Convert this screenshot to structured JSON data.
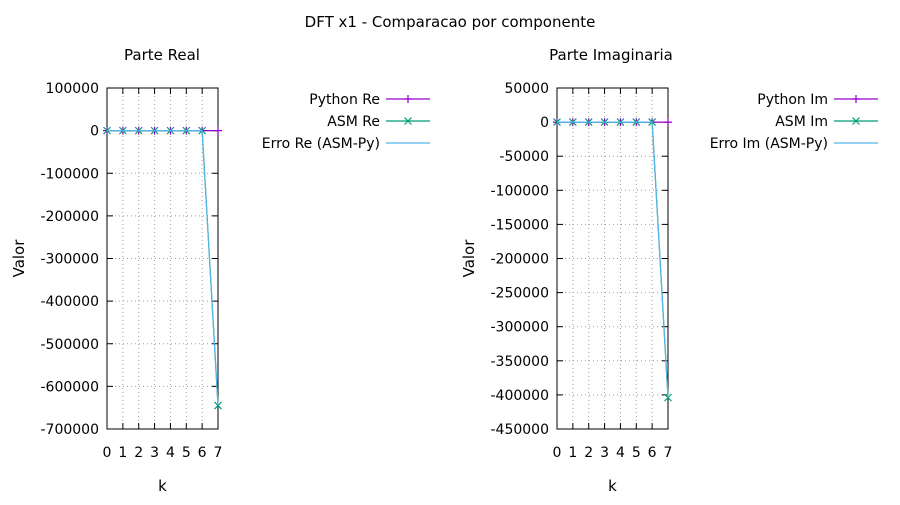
{
  "figure": {
    "title": "DFT x1 - Comparacao por componente"
  },
  "chart_data": [
    {
      "type": "line",
      "title": "Parte Real",
      "xlabel": "k",
      "ylabel": "Valor",
      "x": [
        0,
        1,
        2,
        3,
        4,
        5,
        6,
        7
      ],
      "xlim": [
        0,
        7
      ],
      "ylim": [
        -700000,
        100000
      ],
      "xticks": [
        0,
        1,
        2,
        3,
        4,
        5,
        6,
        7
      ],
      "yticks": [
        100000,
        0,
        -100000,
        -200000,
        -300000,
        -400000,
        -500000,
        -600000,
        -700000
      ],
      "grid": true,
      "legend_position": "right",
      "series": [
        {
          "name": "Python Re",
          "color": "#9400d3",
          "marker": "plus",
          "values": [
            0,
            0,
            0,
            0,
            0,
            0,
            0,
            0
          ]
        },
        {
          "name": "ASM Re",
          "color": "#009e73",
          "marker": "cross",
          "values": [
            0,
            0,
            0,
            0,
            0,
            0,
            0,
            -645000
          ]
        },
        {
          "name": "Erro Re (ASM-Py)",
          "color": "#56b4e9",
          "marker": "none",
          "values": [
            0,
            0,
            0,
            0,
            0,
            0,
            0,
            -645000
          ]
        }
      ]
    },
    {
      "type": "line",
      "title": "Parte Imaginaria",
      "xlabel": "k",
      "ylabel": "Valor",
      "x": [
        0,
        1,
        2,
        3,
        4,
        5,
        6,
        7
      ],
      "xlim": [
        0,
        7
      ],
      "ylim": [
        -450000,
        50000
      ],
      "xticks": [
        0,
        1,
        2,
        3,
        4,
        5,
        6,
        7
      ],
      "yticks": [
        50000,
        0,
        -50000,
        -100000,
        -150000,
        -200000,
        -250000,
        -300000,
        -350000,
        -400000,
        -450000
      ],
      "grid": true,
      "legend_position": "right",
      "series": [
        {
          "name": "Python Im",
          "color": "#9400d3",
          "marker": "plus",
          "values": [
            0,
            0,
            0,
            0,
            0,
            0,
            0,
            0
          ]
        },
        {
          "name": "ASM Im",
          "color": "#009e73",
          "marker": "cross",
          "values": [
            0,
            0,
            0,
            0,
            0,
            0,
            0,
            -404000
          ]
        },
        {
          "name": "Erro Im (ASM-Py)",
          "color": "#56b4e9",
          "marker": "none",
          "values": [
            0,
            0,
            0,
            0,
            0,
            0,
            0,
            -404000
          ]
        }
      ]
    }
  ]
}
